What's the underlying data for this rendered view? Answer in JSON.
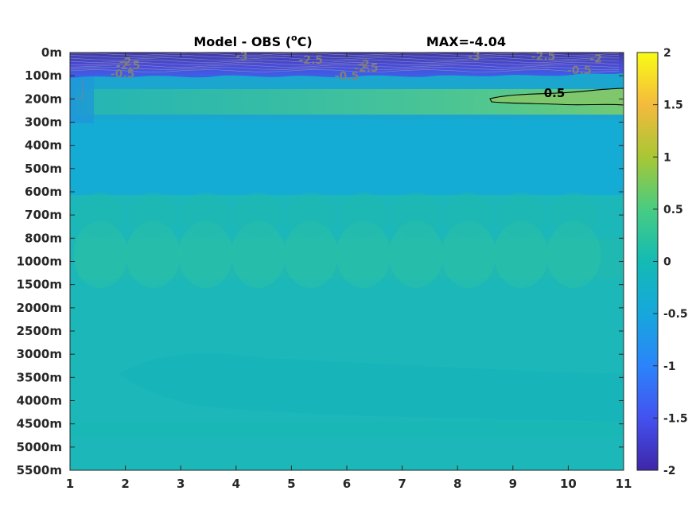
{
  "chart_data": {
    "type": "heatmap",
    "title": "Model - OBS (",
    "title_sup": "o",
    "title_unit": "C)",
    "max_label": "MAX=-4.04",
    "x_ticks": [
      1,
      2,
      3,
      4,
      5,
      6,
      7,
      8,
      9,
      10,
      11
    ],
    "xlim": [
      1,
      11
    ],
    "y_ticks": [
      "0m",
      "100m",
      "200m",
      "300m",
      "400m",
      "500m",
      "600m",
      "700m",
      "800m",
      "1000m",
      "1500m",
      "2000m",
      "2500m",
      "3000m",
      "3500m",
      "4000m",
      "4500m",
      "5000m",
      "5500m"
    ],
    "colorbar": {
      "ticks": [
        "2",
        "1.5",
        "1",
        "0.5",
        "0",
        "-0.5",
        "-1",
        "-1.5",
        "-2"
      ],
      "range": [
        -2,
        2
      ]
    },
    "contour_labels": [
      {
        "text": "-2",
        "x": 2.0,
        "row": 0.4,
        "gray": true
      },
      {
        "text": "-2.5",
        "x": 2.05,
        "row": 0.55,
        "gray": true
      },
      {
        "text": "-0.5",
        "x": 1.95,
        "row": 0.9,
        "gray": true
      },
      {
        "text": "-3",
        "x": 4.1,
        "row": 0.15,
        "gray": true
      },
      {
        "text": "-2.5",
        "x": 5.35,
        "row": 0.3,
        "gray": true
      },
      {
        "text": "-0.5",
        "x": 6.0,
        "row": 1.0,
        "gray": true
      },
      {
        "text": "-2",
        "x": 6.3,
        "row": 0.5,
        "gray": true
      },
      {
        "text": "-2.5",
        "x": 6.35,
        "row": 0.65,
        "gray": true
      },
      {
        "text": "-3",
        "x": 8.3,
        "row": 0.15,
        "gray": true
      },
      {
        "text": "-2.5",
        "x": 9.55,
        "row": 0.15,
        "gray": true
      },
      {
        "text": "-0.5",
        "x": 10.2,
        "row": 0.75,
        "gray": true
      },
      {
        "text": "-2",
        "x": 10.5,
        "row": 0.25,
        "gray": true
      },
      {
        "text": "0.5",
        "x": 9.75,
        "row": 1.75,
        "gray": false
      }
    ]
  }
}
